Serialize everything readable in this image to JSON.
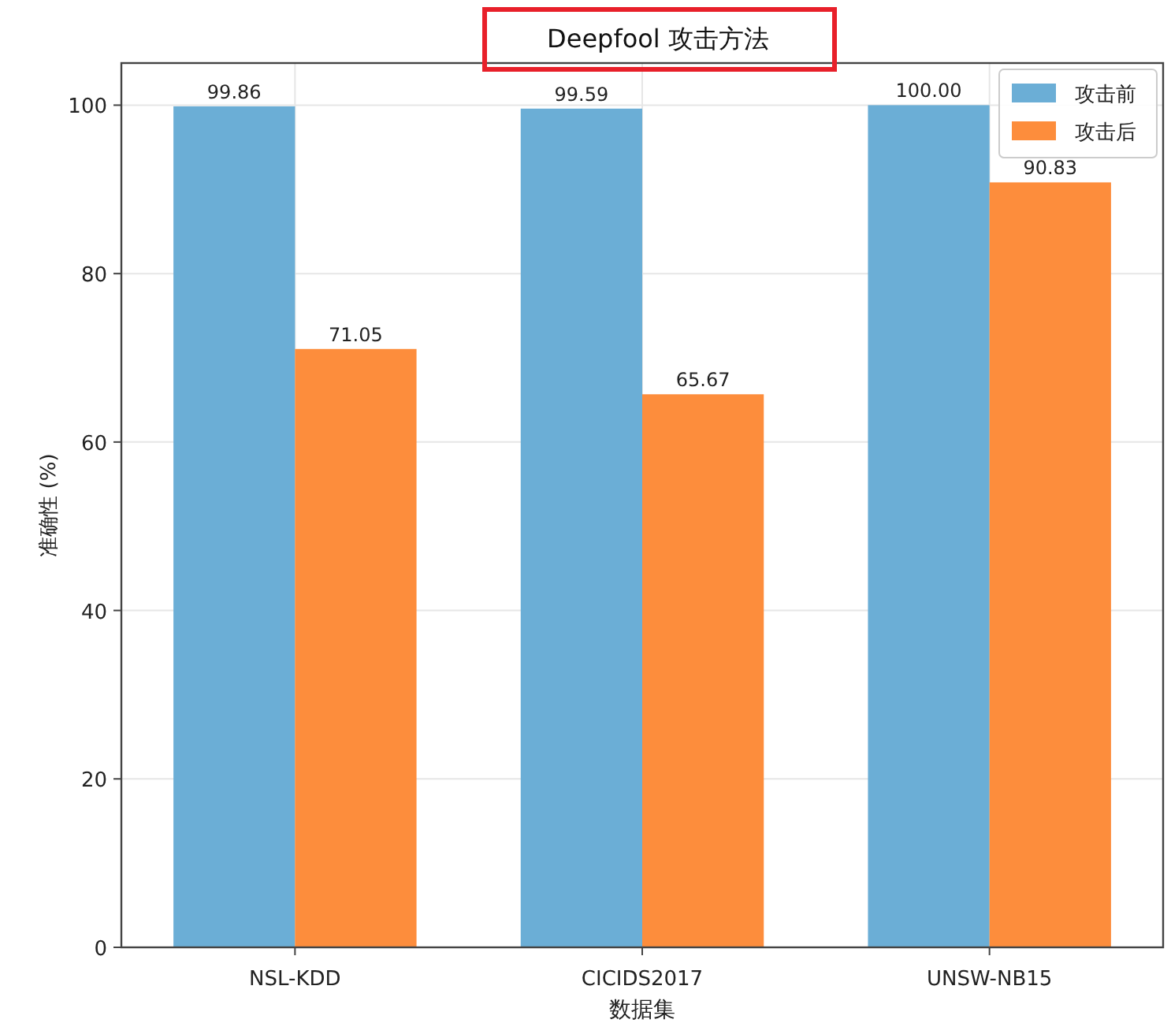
{
  "chart_data": {
    "type": "bar",
    "title": "Deepfool 攻击方法",
    "xlabel": "数据集",
    "ylabel": "准确性 (%)",
    "categories": [
      "NSL-KDD",
      "CICIDS2017",
      "UNSW-NB15"
    ],
    "series": [
      {
        "name": "攻击前",
        "color": "#6baed6",
        "values": [
          99.86,
          99.59,
          100.0
        ],
        "value_labels": [
          "99.86",
          "99.59",
          "100.00"
        ]
      },
      {
        "name": "攻击后",
        "color": "#fd8d3c",
        "values": [
          71.05,
          65.67,
          90.83
        ],
        "value_labels": [
          "71.05",
          "65.67",
          "90.83"
        ]
      }
    ],
    "ylim": [
      0,
      105
    ],
    "yticks": [
      0,
      20,
      40,
      60,
      80,
      100
    ],
    "grid": true,
    "legend": "top right"
  }
}
